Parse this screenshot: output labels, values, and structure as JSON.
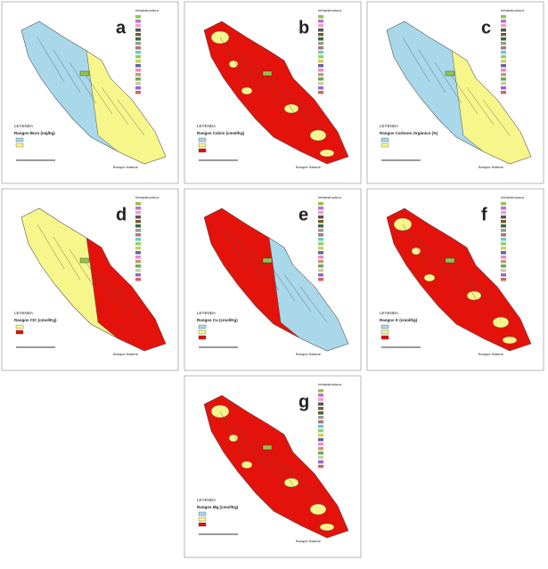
{
  "figure": {
    "infrastructure_title": "Infraestructura",
    "legend_title": "LEYENDA",
    "forest_label": "Bosque Natural",
    "panels": [
      {
        "letter": "a",
        "range_title": "Rangos Boro (mg/kg)",
        "fill": "#a8d8ea",
        "patch": {
          "color": "#f7f68a",
          "form": "east"
        },
        "classes": [
          "#a8d8ea",
          "#f7f68a"
        ]
      },
      {
        "letter": "b",
        "range_title": "Rangos Calcio (cmol/Kg)",
        "fill": "#e3120b",
        "patch": {
          "color": "#f7f68a",
          "form": "spots"
        },
        "classes": [
          "#a8d8ea",
          "#f7f68a",
          "#e3120b"
        ]
      },
      {
        "letter": "c",
        "range_title": "Rangos Carbono Orgánico (%)",
        "fill": "#a8d8ea",
        "patch": {
          "color": "#f7f68a",
          "form": "east"
        },
        "classes": [
          "#a8d8ea",
          "#f7f68a"
        ]
      },
      {
        "letter": "d",
        "range_title": "Rangos CIC (cmol/Kg)",
        "fill": "#f7f68a",
        "patch": {
          "color": "#e3120b",
          "form": "east"
        },
        "classes": [
          "#f7f68a",
          "#e3120b"
        ]
      },
      {
        "letter": "e",
        "range_title": "Rangos Cu (cmol/Kg)",
        "fill": "#e3120b",
        "patch": {
          "color": "#a8d8ea",
          "form": "east"
        },
        "classes": [
          "#a8d8ea",
          "#f7f68a",
          "#e3120b"
        ]
      },
      {
        "letter": "f",
        "range_title": "Rangos K (cmol/kg)",
        "fill": "#e3120b",
        "patch": {
          "color": "#f7f68a",
          "form": "spots"
        },
        "classes": [
          "#a8d8ea",
          "#f7f68a",
          "#e3120b"
        ]
      },
      {
        "letter": "g",
        "range_title": "Rangos Mg (cmol/Kg)",
        "fill": "#e3120b",
        "patch": {
          "color": "#f7f68a",
          "form": "spots"
        },
        "classes": [
          "#a8d8ea",
          "#f7f68a",
          "#e3120b"
        ]
      }
    ]
  }
}
